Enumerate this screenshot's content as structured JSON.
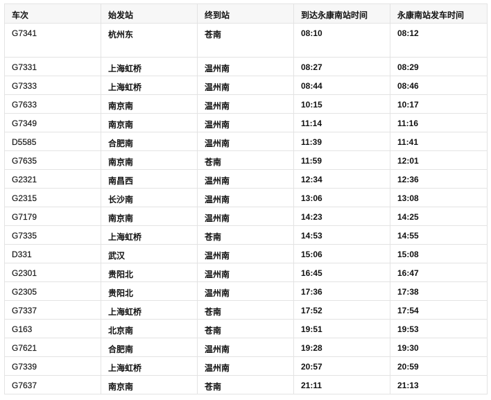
{
  "table": {
    "headers": [
      "车次",
      "始发站",
      "终到站",
      "到达永康南站时间",
      "永康南站发车时间"
    ],
    "rows": [
      [
        "G7341",
        "杭州东",
        "苍南",
        "08:10",
        "08:12"
      ],
      [
        "G7331",
        "上海虹桥",
        "温州南",
        "08:27",
        "08:29"
      ],
      [
        "G7333",
        "上海虹桥",
        "温州南",
        "08:44",
        "08:46"
      ],
      [
        "G7633",
        "南京南",
        "温州南",
        "10:15",
        "10:17"
      ],
      [
        "G7349",
        "南京南",
        "温州南",
        "11:14",
        "11:16"
      ],
      [
        "D5585",
        "合肥南",
        "温州南",
        "11:39",
        "11:41"
      ],
      [
        "G7635",
        "南京南",
        "苍南",
        "11:59",
        "12:01"
      ],
      [
        "G2321",
        "南昌西",
        "温州南",
        "12:34",
        "12:36"
      ],
      [
        "G2315",
        "长沙南",
        "温州南",
        "13:06",
        "13:08"
      ],
      [
        "G7179",
        "南京南",
        "温州南",
        "14:23",
        "14:25"
      ],
      [
        "G7335",
        "上海虹桥",
        "苍南",
        "14:53",
        "14:55"
      ],
      [
        "D331",
        "武汉",
        "温州南",
        "15:06",
        "15:08"
      ],
      [
        "G2301",
        "贵阳北",
        "温州南",
        "16:45",
        "16:47"
      ],
      [
        "G2305",
        "贵阳北",
        "温州南",
        "17:36",
        "17:38"
      ],
      [
        "G7337",
        "上海虹桥",
        "苍南",
        "17:52",
        "17:54"
      ],
      [
        "G163",
        "北京南",
        "苍南",
        "19:51",
        "19:53"
      ],
      [
        "G7621",
        "合肥南",
        "温州南",
        "19:28",
        "19:30"
      ],
      [
        "G7339",
        "上海虹桥",
        "温州南",
        "20:57",
        "20:59"
      ],
      [
        "G7637",
        "南京南",
        "苍南",
        "21:11",
        "21:13"
      ]
    ]
  }
}
